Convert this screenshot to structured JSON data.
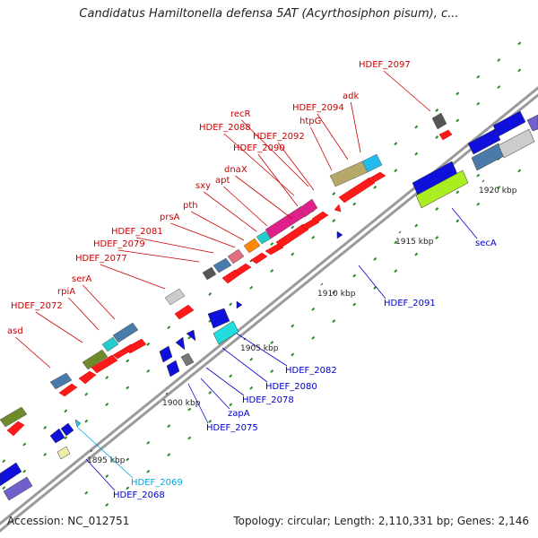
{
  "title": "Candidatus Hamiltonella defensa 5AT (Acyrthosiphon pisum), c...",
  "accession": "Accession: NC_012751",
  "topology": "Topology: circular; Length: 2,110,331 bp; Genes: 2,146",
  "colors": {
    "forward_label": "#cc0000",
    "reverse_label": "#0000cc",
    "highlight_label": "#00aadd",
    "backbone": "#999999",
    "tick": "#2a8a2a"
  },
  "ticks": [
    {
      "label": "1895 kbp"
    },
    {
      "label": "1900 kbp"
    },
    {
      "label": "1905 kbp"
    },
    {
      "label": "1910 kbp"
    },
    {
      "label": "1915 kbp"
    },
    {
      "label": "1920 kbp"
    }
  ],
  "forward_labels": [
    {
      "text": "asd"
    },
    {
      "text": "HDEF_2072"
    },
    {
      "text": "rpiA"
    },
    {
      "text": "serA"
    },
    {
      "text": "HDEF_2077"
    },
    {
      "text": "HDEF_2079"
    },
    {
      "text": "HDEF_2081"
    },
    {
      "text": "prsA"
    },
    {
      "text": "pth"
    },
    {
      "text": "sxy"
    },
    {
      "text": "apt"
    },
    {
      "text": "dnaX"
    },
    {
      "text": "HDEF_2090"
    },
    {
      "text": "HDEF_2088"
    },
    {
      "text": "HDEF_2092"
    },
    {
      "text": "recR"
    },
    {
      "text": "htpG"
    },
    {
      "text": "HDEF_2094"
    },
    {
      "text": "adk"
    },
    {
      "text": "HDEF_2097"
    }
  ],
  "reverse_labels": [
    {
      "text": "HDEF_2068",
      "color": "#0000cc"
    },
    {
      "text": "HDEF_2069",
      "color": "#00aadd"
    },
    {
      "text": "HDEF_2075",
      "color": "#0000cc"
    },
    {
      "text": "zapA",
      "color": "#0000cc"
    },
    {
      "text": "HDEF_2078",
      "color": "#0000cc"
    },
    {
      "text": "HDEF_2080",
      "color": "#0000cc"
    },
    {
      "text": "HDEF_2082",
      "color": "#0000cc"
    },
    {
      "text": "HDEF_2091",
      "color": "#0000cc"
    },
    {
      "text": "secA",
      "color": "#0000cc"
    }
  ]
}
